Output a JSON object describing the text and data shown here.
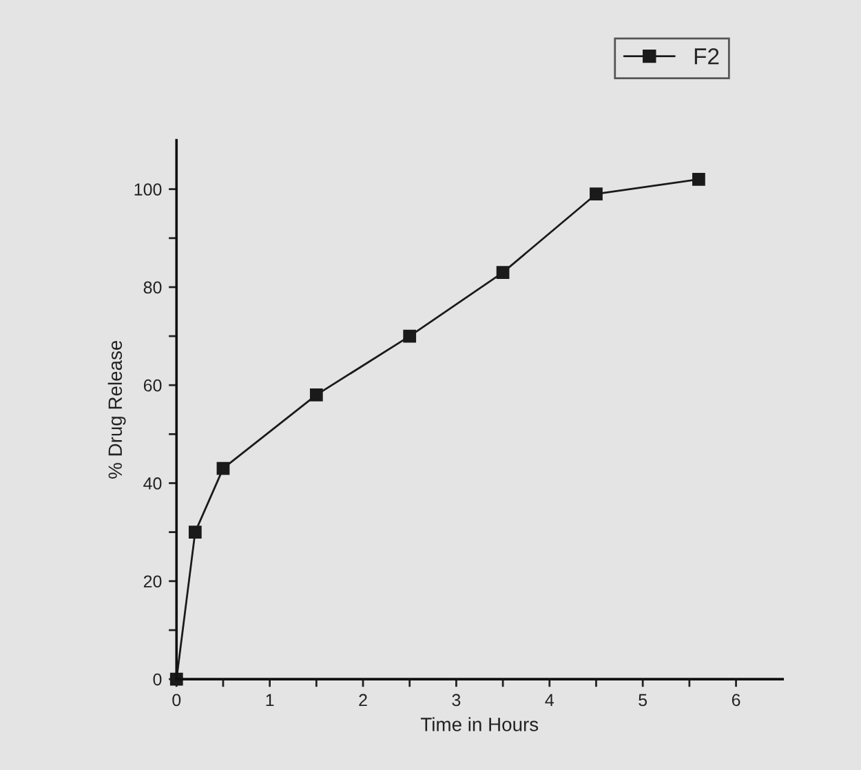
{
  "chart_data": {
    "type": "line",
    "xlabel": "Time in Hours",
    "ylabel": "% Drug Release",
    "x": [
      0,
      0.2,
      0.5,
      1.5,
      2.5,
      3.5,
      4.5,
      5.6
    ],
    "series": [
      {
        "name": "F2",
        "color": "#1a1a1a",
        "values": [
          0,
          30,
          43,
          58,
          70,
          83,
          99,
          102
        ]
      }
    ],
    "xlim": [
      0,
      6.5
    ],
    "ylim": [
      0,
      110
    ],
    "xticks": [
      0,
      {
        "value": 0.5,
        "label": null
      },
      1,
      {
        "value": 1.5,
        "label": null
      },
      2,
      {
        "value": 2.5,
        "label": null
      },
      3,
      {
        "value": 3.5,
        "label": null
      },
      4,
      {
        "value": 4.5,
        "label": null
      },
      5,
      {
        "value": 5.5,
        "label": null
      },
      6
    ],
    "yticks": [
      0,
      {
        "value": 10,
        "label": null
      },
      20,
      {
        "value": 30,
        "label": null
      },
      40,
      {
        "value": 50,
        "label": null
      },
      60,
      {
        "value": 70,
        "label": null
      },
      80,
      {
        "value": 90,
        "label": null
      },
      100
    ],
    "marker": "square",
    "line_style": "solid",
    "legend": "top right",
    "grid": false
  }
}
